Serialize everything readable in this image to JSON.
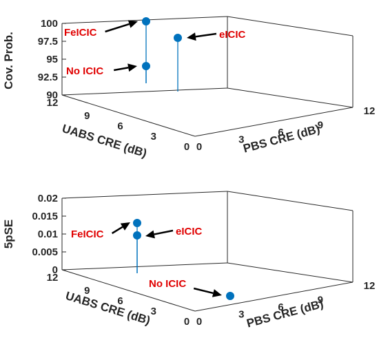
{
  "colors": {
    "stem": "#0072bd",
    "annotation": "#e00000",
    "axis": "#262626",
    "grid": "#dcdcdc"
  },
  "chart_data": [
    {
      "type": "scatter",
      "variant": "3d-stem",
      "zlabel": "Cov. Prob.",
      "xlabel": "PBS CRE (dB)",
      "ylabel": "UABS  CRE (dB)",
      "xticks": [
        0,
        3,
        6,
        9,
        12
      ],
      "yticks": [
        0,
        3,
        6,
        9,
        12
      ],
      "zticks": [
        "90",
        "92.5",
        "95",
        "97.5",
        "100"
      ],
      "zlim": [
        90,
        100
      ],
      "grid": true,
      "points": [
        {
          "label": "FeICIC",
          "x": 0,
          "y": 7,
          "z": 100
        },
        {
          "label": "No ICIC",
          "x": 0,
          "y": 7,
          "z": 94.5
        },
        {
          "label": "eICIC",
          "x": 5,
          "y": 9,
          "z": 98.2
        }
      ]
    },
    {
      "type": "scatter",
      "variant": "3d-stem",
      "zlabel": "5pSE",
      "xlabel": "PBS CRE (dB)",
      "ylabel": "UABS CRE (dB)",
      "xticks": [
        0,
        3,
        6,
        9,
        12
      ],
      "yticks": [
        0,
        3,
        6,
        9,
        12
      ],
      "zticks": [
        "0",
        "0.005",
        "0.01",
        "0.015",
        "0.02"
      ],
      "zlim": [
        0,
        0.02
      ],
      "grid": true,
      "points": [
        {
          "label": "FeICIC",
          "x": 0,
          "y": 7,
          "z": 0.0135
        },
        {
          "label": "eICIC",
          "x": 0,
          "y": 7,
          "z": 0.0097
        },
        {
          "label": "No ICIC",
          "x": 0,
          "y": 0,
          "z": 0
        }
      ]
    }
  ]
}
